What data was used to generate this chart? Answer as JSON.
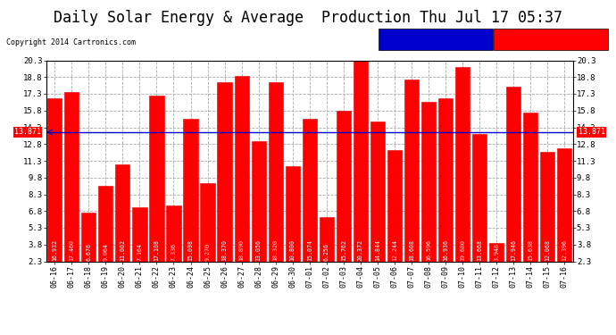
{
  "title": "Daily Solar Energy & Average  Production Thu Jul 17 05:37",
  "copyright": "Copyright 2014 Cartronics.com",
  "categories": [
    "06-16",
    "06-17",
    "06-18",
    "06-19",
    "06-20",
    "06-21",
    "06-22",
    "06-23",
    "06-24",
    "06-25",
    "06-26",
    "06-27",
    "06-28",
    "06-29",
    "06-30",
    "07-01",
    "07-02",
    "07-03",
    "07-04",
    "07-05",
    "07-06",
    "07-07",
    "07-08",
    "07-09",
    "07-10",
    "07-11",
    "07-12",
    "07-13",
    "07-14",
    "07-15",
    "07-16"
  ],
  "values": [
    16.932,
    17.46,
    6.676,
    9.064,
    11.002,
    7.164,
    17.108,
    7.336,
    15.098,
    9.27,
    18.37,
    18.89,
    13.056,
    18.32,
    10.8,
    15.074,
    6.256,
    15.762,
    20.372,
    14.844,
    12.244,
    18.608,
    16.596,
    16.936,
    19.68,
    13.668,
    3.948,
    17.946,
    15.638,
    12.068,
    12.396
  ],
  "average": 13.871,
  "bar_color": "#ff0000",
  "bar_edge_color": "#dd0000",
  "average_line_color": "#0000cc",
  "background_color": "#ffffff",
  "plot_bg_color": "#ffffff",
  "grid_color": "#aaaaaa",
  "ylim": [
    2.3,
    20.3
  ],
  "yticks": [
    2.3,
    3.8,
    5.3,
    6.8,
    8.3,
    9.8,
    11.3,
    12.8,
    14.3,
    15.8,
    17.3,
    18.8,
    20.3
  ],
  "title_fontsize": 12,
  "copyright_fontsize": 6,
  "legend_avg_color": "#0000cc",
  "legend_daily_color": "#ff0000",
  "value_label_fontsize": 4.8,
  "tick_label_fontsize": 6.0,
  "ytick_label_fontsize": 6.5,
  "avg_side_label": "13.871"
}
